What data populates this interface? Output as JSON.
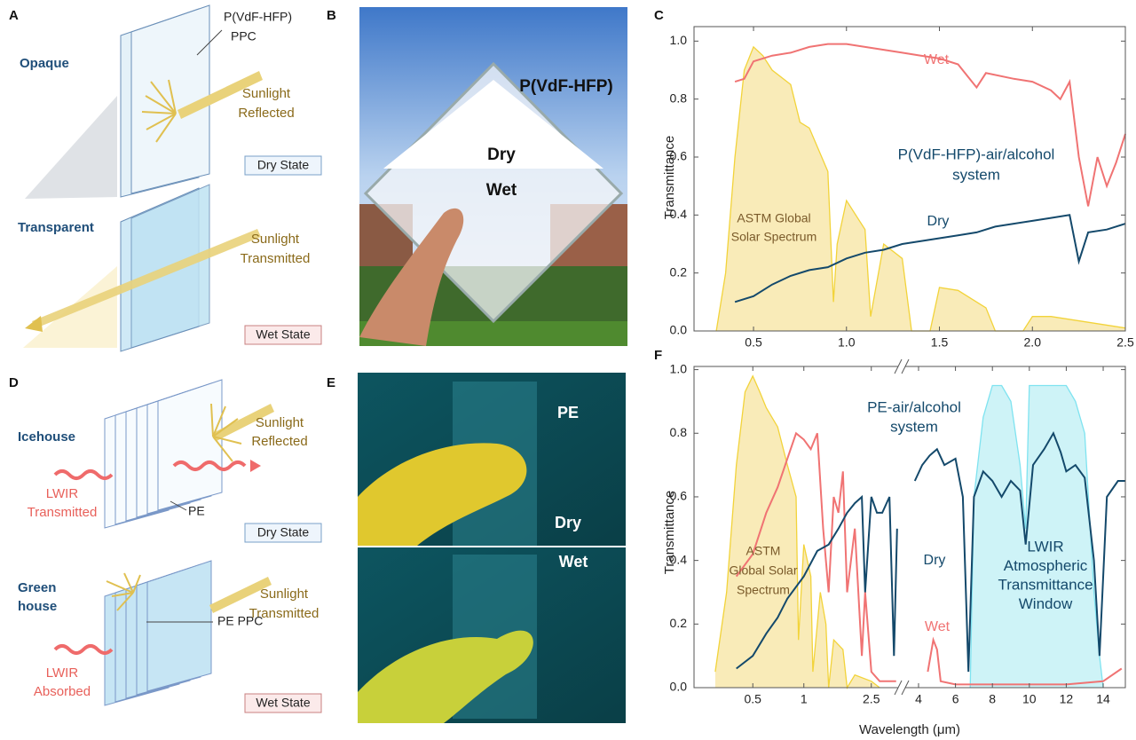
{
  "panel_a": {
    "label": "A",
    "film_label": [
      "P(VdF-HFP)",
      "PPC"
    ],
    "top": {
      "state": "Opaque",
      "light": [
        "Sunlight",
        "Reflected"
      ],
      "tag": "Dry State"
    },
    "bottom": {
      "state": "Transparent",
      "light": [
        "Sunlight",
        "Transmitted"
      ],
      "tag": "Wet State"
    }
  },
  "panel_b": {
    "label": "B",
    "film": "P(VdF-HFP)",
    "dry": "Dry",
    "wet": "Wet"
  },
  "panel_d": {
    "label": "D",
    "top": {
      "state": "Icehouse",
      "light": [
        "Sunlight",
        "Reflected"
      ],
      "lwir": [
        "LWIR",
        "Transmitted"
      ],
      "film": "PE",
      "tag": "Dry State"
    },
    "bottom": {
      "state": [
        "Green",
        "house"
      ],
      "light": [
        "Sunlight",
        "Transmitted"
      ],
      "lwir": [
        "LWIR",
        "Absorbed"
      ],
      "film": "PE PPC",
      "tag": "Wet State"
    }
  },
  "panel_e": {
    "label": "E",
    "film": "PE",
    "dry": "Dry",
    "wet": "Wet"
  },
  "chart_data": [
    {
      "type": "line",
      "label": "C",
      "ylabel": "Transmittance",
      "xlim": [
        0.18,
        2.5
      ],
      "ylim": [
        0,
        1.05
      ],
      "xticks": [
        0.5,
        {
          "value": 1,
          "label": "1.0"
        },
        1.5,
        {
          "value": 2,
          "label": "2.0"
        },
        2.5
      ],
      "yticks": [
        {
          "value": 0,
          "label": "0.0"
        },
        0.2,
        0.4,
        0.6,
        0.8,
        {
          "value": 1,
          "label": "1.0"
        }
      ],
      "annotations": [
        [
          "P(VdF-HFP)-air/alcohol",
          "system"
        ],
        [
          "ASTM Global",
          "Solar Spectrum"
        ]
      ],
      "series": [
        {
          "color": "#f2d33a",
          "fill": "#f8e7ac",
          "x": [
            0.3,
            0.35,
            0.4,
            0.45,
            0.5,
            0.55,
            0.6,
            0.7,
            0.75,
            0.8,
            0.9,
            0.93,
            0.95,
            1.0,
            1.1,
            1.13,
            1.2,
            1.3,
            1.35,
            1.45,
            1.5,
            1.6,
            1.75,
            1.8,
            1.95,
            2.0,
            2.1,
            2.3,
            2.5
          ],
          "values": [
            0,
            0.2,
            0.6,
            0.9,
            0.98,
            0.95,
            0.9,
            0.85,
            0.72,
            0.7,
            0.55,
            0.1,
            0.3,
            0.45,
            0.35,
            0.05,
            0.3,
            0.25,
            0,
            0,
            0.15,
            0.14,
            0.08,
            0,
            0,
            0.05,
            0.05,
            0.03,
            0.01
          ]
        },
        {
          "name": "Wet",
          "color": "#f07373",
          "x": [
            0.4,
            0.45,
            0.5,
            0.6,
            0.7,
            0.8,
            0.9,
            1.0,
            1.1,
            1.2,
            1.3,
            1.4,
            1.5,
            1.6,
            1.65,
            1.7,
            1.75,
            1.9,
            2.0,
            2.1,
            2.15,
            2.2,
            2.25,
            2.3,
            2.35,
            2.4,
            2.45,
            2.5
          ],
          "values": [
            0.86,
            0.87,
            0.93,
            0.95,
            0.96,
            0.98,
            0.99,
            0.99,
            0.98,
            0.97,
            0.96,
            0.95,
            0.94,
            0.92,
            0.88,
            0.84,
            0.89,
            0.87,
            0.86,
            0.83,
            0.8,
            0.86,
            0.6,
            0.43,
            0.6,
            0.5,
            0.58,
            0.68
          ]
        },
        {
          "name": "Dry",
          "color": "#14496b",
          "x": [
            0.4,
            0.5,
            0.6,
            0.7,
            0.8,
            0.9,
            1.0,
            1.1,
            1.2,
            1.3,
            1.4,
            1.5,
            1.6,
            1.7,
            1.8,
            1.9,
            2.0,
            2.1,
            2.2,
            2.25,
            2.3,
            2.4,
            2.5
          ],
          "values": [
            0.1,
            0.12,
            0.16,
            0.19,
            0.21,
            0.22,
            0.25,
            0.27,
            0.28,
            0.3,
            0.31,
            0.32,
            0.33,
            0.34,
            0.36,
            0.37,
            0.38,
            0.39,
            0.4,
            0.24,
            0.34,
            0.35,
            0.37
          ]
        }
      ]
    },
    {
      "type": "line",
      "label": "F",
      "ylabel": "Transmittance",
      "xlabel": "Wavelength (μm)",
      "segments": [
        {
          "xlim": [
            0.225,
            3.6
          ],
          "log": true,
          "xticks": [
            0.5,
            1,
            2.5
          ]
        },
        {
          "xlim": [
            3.28,
            15.2
          ],
          "log": false,
          "xticks": [
            4,
            6,
            8,
            10,
            12,
            14
          ]
        }
      ],
      "ylim": [
        0,
        1.01
      ],
      "yticks": [
        {
          "value": 0,
          "label": "0.0"
        },
        0.2,
        0.4,
        0.6,
        0.8,
        {
          "value": 1,
          "label": "1.0"
        }
      ],
      "annotations": [
        [
          "PE-air/alcohol",
          "system"
        ],
        [
          "ASTM",
          "Global Solar",
          "Spectrum"
        ],
        [
          "LWIR",
          "Atmospheric",
          "Transmittance",
          "Window"
        ]
      ],
      "series": [
        {
          "color": "#f2d33a",
          "fill": "#f8e7ac",
          "x": [
            0.3,
            0.35,
            0.4,
            0.45,
            0.5,
            0.55,
            0.6,
            0.7,
            0.8,
            0.9,
            0.93,
            1.0,
            1.1,
            1.13,
            1.25,
            1.35,
            1.4,
            1.5,
            1.7,
            1.8,
            2.0,
            2.5,
            2.8
          ],
          "values": [
            0.05,
            0.3,
            0.7,
            0.93,
            0.98,
            0.93,
            0.88,
            0.82,
            0.7,
            0.6,
            0.15,
            0.45,
            0.35,
            0.05,
            0.3,
            0.2,
            0,
            0.15,
            0.12,
            0,
            0.04,
            0.02,
            0
          ]
        },
        {
          "color": "#7fe3f0",
          "fill": "#c6f1f6",
          "x": [
            6.8,
            7,
            7.5,
            8,
            8.5,
            9,
            9.5,
            9.8,
            10,
            11,
            12,
            12.5,
            13,
            13.5,
            13.8,
            14
          ],
          "values": [
            0,
            0.6,
            0.85,
            0.95,
            0.95,
            0.9,
            0.7,
            0.5,
            0.95,
            0.95,
            0.95,
            0.9,
            0.8,
            0.3,
            0.1,
            0
          ]
        },
        {
          "name": "Wet",
          "color": "#f07373",
          "x": [
            0.4,
            0.5,
            0.6,
            0.7,
            0.8,
            0.9,
            1.0,
            1.1,
            1.2,
            1.3,
            1.4,
            1.5,
            1.6,
            1.7,
            1.8,
            2.0,
            2.2,
            2.3,
            2.5,
            2.8,
            3.5,
            4.5,
            4.8,
            5,
            5.2,
            6,
            8,
            10,
            12,
            14,
            15
          ],
          "values": [
            0.35,
            0.42,
            0.55,
            0.63,
            0.72,
            0.8,
            0.78,
            0.75,
            0.8,
            0.5,
            0.3,
            0.6,
            0.55,
            0.68,
            0.3,
            0.5,
            0.1,
            0.3,
            0.05,
            0.02,
            0.02,
            0.05,
            0.15,
            0.12,
            0.02,
            0.01,
            0.01,
            0.01,
            0.01,
            0.02,
            0.06
          ]
        },
        {
          "name": "Dry",
          "color": "#14496b",
          "x": [
            0.4,
            0.5,
            0.6,
            0.7,
            0.8,
            1.0,
            1.2,
            1.4,
            1.6,
            1.8,
            2.0,
            2.2,
            2.3,
            2.5,
            2.7,
            2.9,
            3.2,
            3.4,
            3.55,
            3.8,
            4.2,
            4.6,
            5,
            5.4,
            6,
            6.4,
            6.7,
            7,
            7.5,
            8,
            8.5,
            9,
            9.5,
            9.8,
            10.2,
            10.8,
            11.3,
            11.7,
            12,
            12.5,
            13,
            13.5,
            13.8,
            14.2,
            14.8,
            15.2
          ],
          "values": [
            0.06,
            0.1,
            0.17,
            0.22,
            0.28,
            0.35,
            0.43,
            0.45,
            0.5,
            0.55,
            0.58,
            0.6,
            0.3,
            0.6,
            0.55,
            0.55,
            0.6,
            0.1,
            0.5,
            0.65,
            0.7,
            0.73,
            0.75,
            0.7,
            0.72,
            0.6,
            0.05,
            0.6,
            0.68,
            0.65,
            0.6,
            0.65,
            0.62,
            0.45,
            0.7,
            0.75,
            0.8,
            0.74,
            0.68,
            0.7,
            0.66,
            0.4,
            0.1,
            0.6,
            0.65,
            0.65
          ]
        }
      ]
    }
  ]
}
